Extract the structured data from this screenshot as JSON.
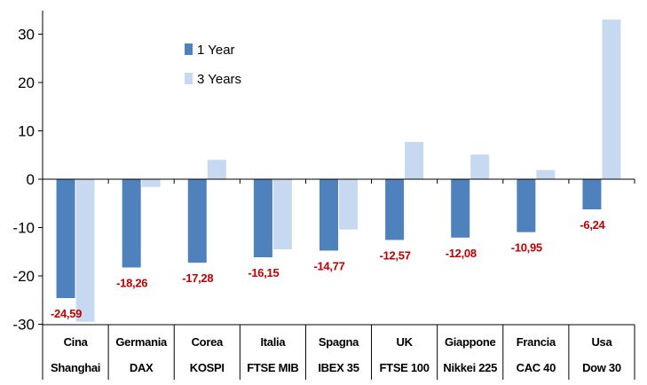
{
  "chart_data": {
    "type": "bar",
    "categories": [
      [
        "Cina",
        "Shanghai"
      ],
      [
        "Germania",
        "DAX"
      ],
      [
        "Corea",
        "KOSPI"
      ],
      [
        "Italia",
        "FTSE MIB"
      ],
      [
        "Spagna",
        "IBEX 35"
      ],
      [
        "UK",
        "FTSE 100"
      ],
      [
        "Giappone",
        "Nikkei 225"
      ],
      [
        "Francia",
        "CAC 40"
      ],
      [
        "Usa",
        "Dow 30"
      ]
    ],
    "series": [
      {
        "name": "1 Year",
        "color": "#4f81bd",
        "values": [
          -24.59,
          -18.26,
          -17.28,
          -16.15,
          -14.77,
          -12.57,
          -12.08,
          -10.95,
          -6.24
        ],
        "data_labels": [
          "-24,59",
          "-18,26",
          "-17,28",
          "-16,15",
          "-14,77",
          "-12,57",
          "-12,08",
          "-10,95",
          "-6,24"
        ]
      },
      {
        "name": "3 Years",
        "color": "#c6d9f1",
        "values": [
          -29.5,
          -1.6,
          4.0,
          -14.5,
          -10.4,
          7.7,
          5.1,
          1.9,
          33.0
        ]
      }
    ],
    "yticks": [
      "30",
      "20",
      "10",
      "0",
      "-10",
      "-20",
      "-30"
    ],
    "ylim": [
      -30,
      33
    ],
    "grid": false,
    "legend_position": "top-center",
    "data_label_color": "#c00000"
  }
}
